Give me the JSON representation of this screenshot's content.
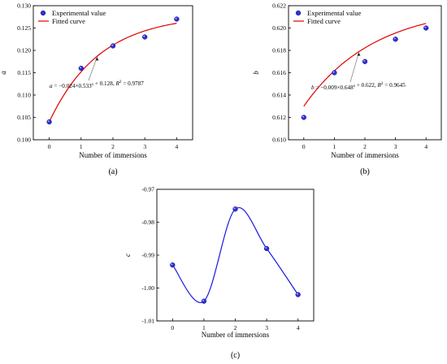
{
  "chart_data": [
    {
      "id": "a",
      "type": "scatter",
      "caption": "(a)",
      "xlabel": "Number of immersions",
      "ylabel": "a",
      "xlim": [
        -0.5,
        4.5
      ],
      "ylim": [
        0.1,
        0.13
      ],
      "xticks": [
        "0",
        "1",
        "2",
        "3",
        "4"
      ],
      "yticks": [
        "0.100",
        "0.105",
        "0.110",
        "0.115",
        "0.120",
        "0.125",
        "0.130"
      ],
      "series": [
        {
          "name": "Experimental value",
          "kind": "points",
          "x": [
            0,
            1,
            2,
            3,
            4
          ],
          "y": [
            0.104,
            0.116,
            0.121,
            0.123,
            0.127
          ]
        },
        {
          "name": "Fitted curve",
          "kind": "line",
          "equation": {
            "A": -0.024,
            "B": 0.533,
            "C": 0.128
          }
        }
      ],
      "annotation": {
        "prefix": "a",
        "mid": " = −0.024×0.533",
        "sup": "x",
        "tail": " + 0.128, ",
        "r2label": "R",
        "r2sup": "2",
        "r2value": " = 0.9787"
      },
      "legend": "top-left",
      "color_points": "#2f2fd8",
      "color_line": "#e00000"
    },
    {
      "id": "b",
      "type": "scatter",
      "caption": "(b)",
      "xlabel": "Number of immersions",
      "ylabel": "b",
      "xlim": [
        -0.5,
        4.5
      ],
      "ylim": [
        0.61,
        0.622
      ],
      "xticks": [
        "0",
        "1",
        "2",
        "3",
        "4"
      ],
      "yticks": [
        "0.610",
        "0.612",
        "0.614",
        "0.616",
        "0.618",
        "0.620",
        "0.622"
      ],
      "series": [
        {
          "name": "Experimental value",
          "kind": "points",
          "x": [
            0,
            1,
            2,
            3,
            4
          ],
          "y": [
            0.612,
            0.616,
            0.617,
            0.619,
            0.62
          ]
        },
        {
          "name": "Fitted curve",
          "kind": "line",
          "equation": {
            "A": -0.009,
            "B": 0.648,
            "C": 0.622
          }
        }
      ],
      "annotation": {
        "prefix": "b",
        "mid": " = −0.009×0.648",
        "sup": "x",
        "tail": " + 0.622, ",
        "r2label": "R",
        "r2sup": "2",
        "r2value": " = 0.9645"
      },
      "legend": "top-left",
      "color_points": "#2f2fd8",
      "color_line": "#e00000"
    },
    {
      "id": "c",
      "type": "line",
      "caption": "(c)",
      "xlabel": "Number of immersions",
      "ylabel": "c",
      "xlim": [
        -0.5,
        4.5
      ],
      "ylim": [
        -1.01,
        -0.97
      ],
      "xticks": [
        "0",
        "1",
        "2",
        "3",
        "4"
      ],
      "yticks": [
        "-1.01",
        "-1.00",
        "-0.99",
        "-0.98",
        "-0.97"
      ],
      "series": [
        {
          "kind": "points",
          "x": [
            0,
            1,
            2,
            3,
            4
          ],
          "y": [
            -0.993,
            -1.004,
            -0.976,
            -0.988,
            -1.002
          ]
        },
        {
          "kind": "smooth",
          "x": [
            0,
            1,
            2,
            3,
            4
          ],
          "y": [
            -0.993,
            -1.004,
            -0.976,
            -0.988,
            -1.002
          ]
        }
      ],
      "color_points": "#2f2fd8",
      "color_line": "#1a1ae0"
    }
  ]
}
